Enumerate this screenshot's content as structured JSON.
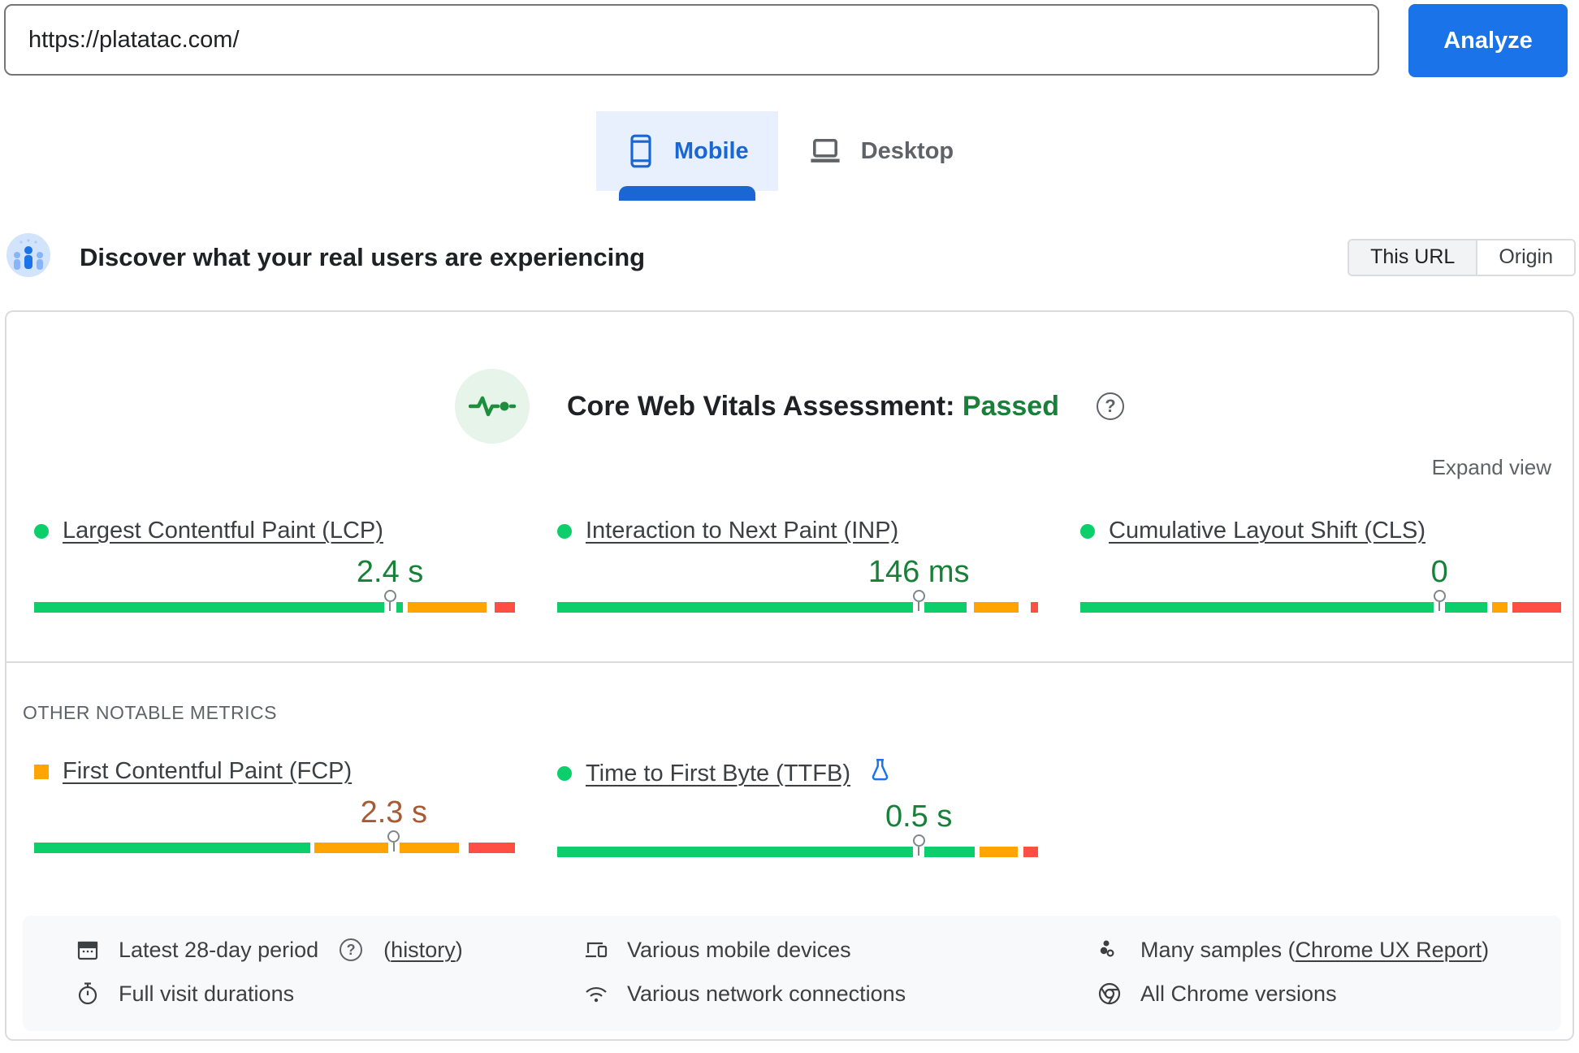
{
  "url_bar": {
    "value": "https://platatac.com/"
  },
  "analyze_label": "Analyze",
  "tabs": {
    "mobile": "Mobile",
    "desktop": "Desktop",
    "selected": "Mobile"
  },
  "field_header": {
    "title": "Discover what your real users are experiencing",
    "toggle_this_url": "This URL",
    "toggle_origin": "Origin",
    "selected_toggle": "This URL"
  },
  "assessment": {
    "label": "Core Web Vitals Assessment:",
    "result": "Passed"
  },
  "expand_view_label": "Expand view",
  "other_metrics_label": "OTHER NOTABLE METRICS",
  "metrics": {
    "core": [
      {
        "id": "lcp",
        "label": "Largest Contentful Paint (LCP)",
        "value": "2.4 s",
        "status": "good",
        "indicator": "dot",
        "marker": 0.74,
        "spans": [
          [
            "g",
            0,
            0.728
          ],
          [
            "g",
            0.753,
            0.767
          ],
          [
            "o",
            0.777,
            0.941
          ],
          [
            "r",
            0.958,
            1
          ]
        ]
      },
      {
        "id": "inp",
        "label": "Interaction to Next Paint (INP)",
        "value": "146 ms",
        "status": "good",
        "indicator": "dot",
        "marker": 0.752,
        "spans": [
          [
            "g",
            0,
            0.74
          ],
          [
            "g",
            0.764,
            0.852
          ],
          [
            "o",
            0.866,
            0.959
          ],
          [
            "r",
            0.985,
            1
          ]
        ]
      },
      {
        "id": "cls",
        "label": "Cumulative Layout Shift (CLS)",
        "value": "0",
        "status": "good",
        "indicator": "dot",
        "marker": 0.747,
        "spans": [
          [
            "g",
            0,
            0.735
          ],
          [
            "g",
            0.759,
            0.847
          ],
          [
            "o",
            0.856,
            0.888
          ],
          [
            "r",
            0.898,
            1
          ]
        ]
      }
    ],
    "other": [
      {
        "id": "fcp",
        "label": "First Contentful Paint (FCP)",
        "value": "2.3 s",
        "status": "ni",
        "indicator": "square",
        "marker": 0.748,
        "spans": [
          [
            "g",
            0,
            0.575
          ],
          [
            "o",
            0.583,
            0.736
          ],
          [
            "o",
            0.76,
            0.884
          ],
          [
            "r",
            0.903,
            1
          ]
        ]
      },
      {
        "id": "ttfb",
        "label": "Time to First Byte (TTFB)",
        "value": "0.5 s",
        "status": "good",
        "indicator": "dot",
        "experimental": true,
        "marker": 0.752,
        "spans": [
          [
            "g",
            0,
            0.74
          ],
          [
            "g",
            0.764,
            0.868
          ],
          [
            "o",
            0.879,
            0.958
          ],
          [
            "r",
            0.97,
            1
          ]
        ]
      }
    ]
  },
  "footer": {
    "period_label": "Latest 28-day period",
    "history_prefix": "(",
    "history_link": "history",
    "history_suffix": ")",
    "durations_label": "Full visit durations",
    "devices_label": "Various mobile devices",
    "network_label": "Various network connections",
    "samples_label": "Many samples (",
    "samples_link": "Chrome UX Report",
    "samples_suffix": ")",
    "chrome_label": "All Chrome versions"
  },
  "colors": {
    "good_green": "#0cce6b",
    "mid_orange": "#ffa400",
    "poor_red": "#ff4e42",
    "value_good": "#188038",
    "value_ni": "#a85b32",
    "accent_blue": "#1a73e8",
    "tab_blue": "#1967d2",
    "passed_green": "#188038"
  }
}
